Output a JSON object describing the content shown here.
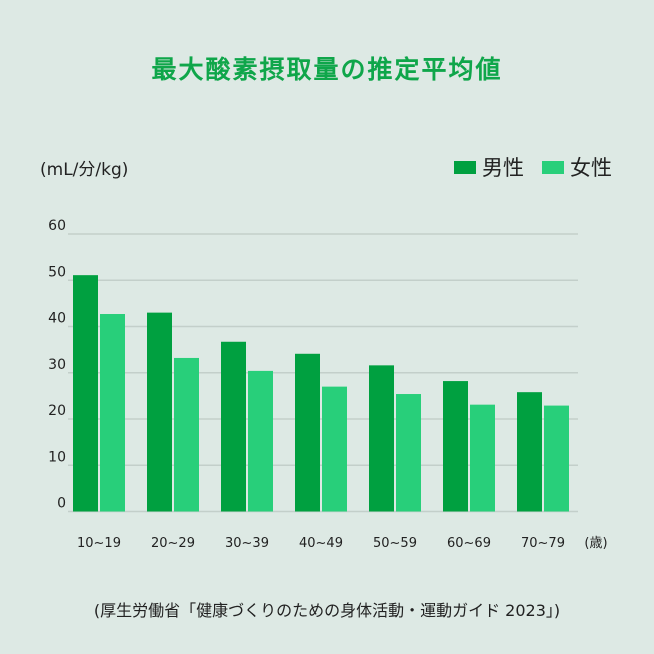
{
  "chart_data": {
    "type": "bar",
    "title": "最大酸素摂取量の推定平均値",
    "ylabel": "(mL/分/kg)",
    "xlabel": "(歳)",
    "categories": [
      "10~19",
      "20~29",
      "30~39",
      "40~49",
      "50~59",
      "60~69",
      "70~79"
    ],
    "series": [
      {
        "name": "男性",
        "color": "#00a040",
        "values": [
          51.1,
          43.0,
          36.7,
          34.1,
          31.6,
          28.2,
          25.8
        ]
      },
      {
        "name": "女性",
        "color": "#28cf7a",
        "values": [
          42.7,
          33.2,
          30.4,
          27.0,
          25.4,
          23.1,
          22.9
        ]
      }
    ],
    "ylim": [
      0,
      60
    ],
    "yticks": [
      0,
      10,
      20,
      30,
      40,
      50,
      60
    ],
    "grid": true,
    "legend_position": "top-right"
  },
  "source": "(厚生労働省「健康づくりのための身体活動・運動ガイド 2023」)"
}
